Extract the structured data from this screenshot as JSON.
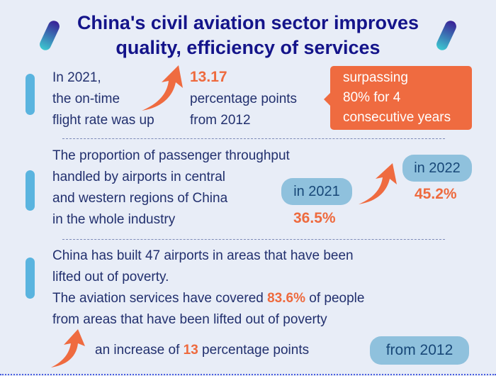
{
  "title": {
    "line1": "China's civil aviation sector improves",
    "line2": "quality, efficiency of services"
  },
  "section1": {
    "lines": [
      "In 2021,",
      "the on-time",
      "flight rate was up"
    ],
    "value": "13.17",
    "unit_lines": [
      "percentage points",
      "from 2012"
    ],
    "callout": [
      "surpassing",
      "80% for 4",
      "consecutive years"
    ]
  },
  "section2": {
    "lines": [
      "The proportion of passenger throughput",
      "handled by airports in central",
      "and western regions of China",
      "in the whole industry"
    ],
    "year1": "in 2021",
    "value1": "36.5%",
    "year2": "in 2022",
    "value2": "45.2%"
  },
  "section3": {
    "line1": "China has built 47 airports in areas that have been",
    "line2": "lifted out of poverty.",
    "line3_pre": "The aviation services have covered ",
    "line3_value": "83.6%",
    "line3_post": " of people",
    "line4": "from areas that have been lifted out of poverty",
    "inc_pre": "an increase of ",
    "inc_value": "13",
    "inc_post": " percentage points",
    "since": "from 2012"
  },
  "colors": {
    "accent": "#ef6b40",
    "title": "#14148a",
    "pill": "#8fc1dd",
    "bar": "#5ab4df"
  }
}
